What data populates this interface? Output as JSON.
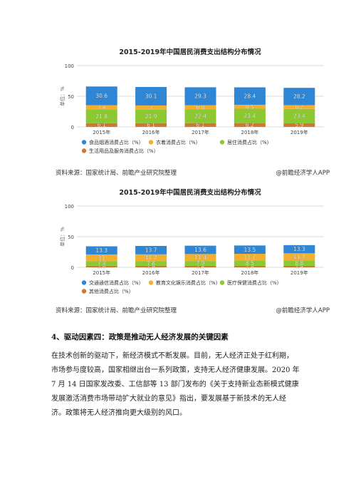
{
  "charts": [
    {
      "title": "2015-2019年中国居民消费支出结构分布情况",
      "ylabel": "单位：%",
      "source": "资料来源：国家统计局、前瞻产业研究院整理",
      "brand": "@前瞻经济学人APP",
      "legend_rows": [
        [
          "食品烟酒消费占比（%）",
          "衣着消费占比（%）",
          "居住消费占比（%）"
        ],
        [
          "生活用品及服务消费占比（%）"
        ]
      ]
    },
    {
      "title": "2015-2019年中国居民消费支出结构分布情况",
      "ylabel": "单位：%",
      "source": "资料来源：国家统计局、前瞻产业研究院整理",
      "brand": "@前瞻经济学人APP",
      "legend_rows": [
        [
          "交通通信消费占比（%）",
          "教育文化娱乐消费占比（%）",
          "医疗保健消费占比（%）"
        ],
        [
          "其他消费占比（%）"
        ]
      ]
    }
  ],
  "chart_data": [
    {
      "type": "bar",
      "stacked": true,
      "title": "2015-2019年中国居民消费支出结构分布情况",
      "ylabel": "单位：%",
      "ylim": [
        0,
        100
      ],
      "yticks": [
        0,
        50,
        100
      ],
      "categories": [
        "2015年",
        "2016年",
        "2017年",
        "2018年",
        "2019年"
      ],
      "series": [
        {
          "name": "生活用品及服务消费占比（%）",
          "color": "#d2772f",
          "values": [
            6.1,
            6.1,
            6.1,
            6.2,
            5.9
          ]
        },
        {
          "name": "居住消费占比（%）",
          "color": "#8bc832",
          "values": [
            21.8,
            21.9,
            22.4,
            23.4,
            23.4
          ]
        },
        {
          "name": "衣着消费占比（%）",
          "color": "#f2b030",
          "values": [
            7.4,
            7.0,
            6.8,
            6.5,
            6.2
          ]
        },
        {
          "name": "食品烟酒消费占比（%）",
          "color": "#2f86d4",
          "values": [
            30.6,
            30.1,
            29.3,
            28.4,
            28.2
          ]
        }
      ],
      "legend": "bottom"
    },
    {
      "type": "bar",
      "stacked": true,
      "title": "2015-2019年中国居民消费支出结构分布情况",
      "ylabel": "单位：%",
      "ylim": [
        0,
        100
      ],
      "yticks": [
        0,
        50,
        100
      ],
      "categories": [
        "2015年",
        "2016年",
        "2017年",
        "2018年",
        "2019年"
      ],
      "series": [
        {
          "name": "其他消费占比（%）",
          "color": "#d2772f",
          "values": [
            2.6,
            2.4,
            2.4,
            2.4,
            2.4
          ]
        },
        {
          "name": "医疗保健消费占比（%）",
          "color": "#8bc832",
          "values": [
            7.4,
            7.6,
            7.9,
            8.5,
            8.8
          ]
        },
        {
          "name": "教育文化娱乐消费占比（%）",
          "color": "#f2b030",
          "values": [
            11.0,
            11.2,
            11.4,
            11.2,
            11.7
          ]
        },
        {
          "name": "交通通信消费占比（%）",
          "color": "#2f86d4",
          "values": [
            13.3,
            13.7,
            13.6,
            13.5,
            13.3
          ]
        }
      ],
      "legend": "bottom"
    }
  ],
  "section": {
    "title": "4、驱动因素四：政策是推动无人经济发展的关键因素",
    "lines": [
      "在技术创新的驱动下，新经济模式不断发展。目前，无人经济正处于红利期，",
      "市场参与度较高，国家相继出台一系列政策，支持无人经济健康发展。2020 年",
      "7 月 14 日国家发改委、工信部等 13 部门发布的《关于支持新业态新模式健康",
      "发展激活消费市场带动扩大就业的意见》指出，要发展基于新技术的无人经",
      "济。政策将无人经济推向更大级别的风口。"
    ]
  }
}
